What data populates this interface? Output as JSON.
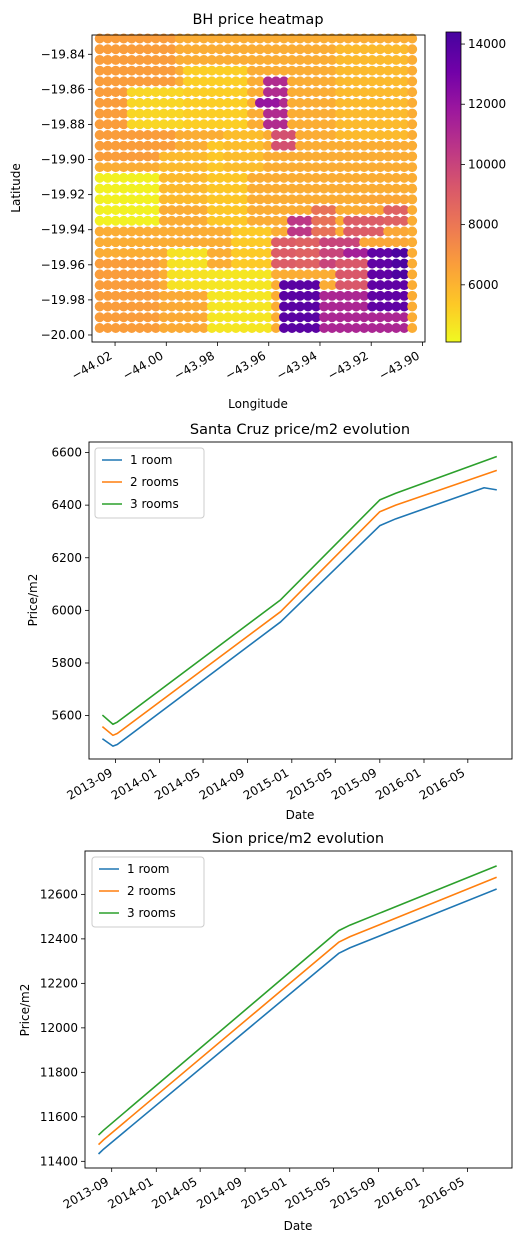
{
  "chart_data": [
    {
      "type": "heatmap",
      "title": "BH price heatmap",
      "xlabel": "Longitude",
      "ylabel": "Latitude",
      "xlim": [
        -44.029,
        -43.899
      ],
      "ylim": [
        -20.004,
        -19.829
      ],
      "x_ticks": [
        -44.02,
        -44.0,
        -43.98,
        -43.96,
        -43.94,
        -43.92,
        -43.9
      ],
      "x_tick_labels": [
        "−44.02",
        "−44.00",
        "−43.98",
        "−43.96",
        "−43.94",
        "−43.92",
        "−43.90"
      ],
      "y_ticks": [
        -19.84,
        -19.86,
        -19.88,
        -19.9,
        -19.92,
        -19.94,
        -19.96,
        -19.98,
        -20.0
      ],
      "y_tick_labels": [
        "−19.84",
        "−19.86",
        "−19.88",
        "−19.90",
        "−19.92",
        "−19.94",
        "−19.96",
        "−19.98",
        "−20.00"
      ],
      "grid": false,
      "colormap": "plasma_r",
      "colorbar_range": [
        4100,
        14400
      ],
      "colorbar_ticks": [
        6000,
        8000,
        10000,
        12000,
        14000
      ],
      "colorbar_tick_labels": [
        "6000",
        "8000",
        "10000",
        "12000",
        "14000"
      ],
      "x_range": [
        -44.026,
        -43.904
      ],
      "y_range": [
        -19.996,
        -19.831
      ],
      "columns": 40,
      "rows": 28,
      "regions": [
        {
          "x": [
            -44.026,
            -43.904
          ],
          "y": [
            -19.996,
            -19.831
          ],
          "value": 6200
        },
        {
          "x": [
            -44.026,
            -43.995
          ],
          "y": [
            -19.9,
            -19.831
          ],
          "value": 6700
        },
        {
          "x": [
            -44.016,
            -43.994
          ],
          "y": [
            -19.88,
            -19.858
          ],
          "value": 5000
        },
        {
          "x": [
            -43.992,
            -43.968
          ],
          "y": [
            -19.88,
            -19.848
          ],
          "value": 5200
        },
        {
          "x": [
            -44.026,
            -44.003
          ],
          "y": [
            -19.935,
            -19.905
          ],
          "value": 4300
        },
        {
          "x": [
            -44.003,
            -43.985
          ],
          "y": [
            -19.925,
            -19.895
          ],
          "value": 5800
        },
        {
          "x": [
            -43.985,
            -43.968
          ],
          "y": [
            -19.94,
            -19.89
          ],
          "value": 5400
        },
        {
          "x": [
            -43.978,
            -43.962
          ],
          "y": [
            -19.905,
            -19.88
          ],
          "value": 5700
        },
        {
          "x": [
            -44.026,
            -44.002
          ],
          "y": [
            -19.996,
            -19.955
          ],
          "value": 6700
        },
        {
          "x": [
            -44.002,
            -43.983
          ],
          "y": [
            -19.996,
            -19.97
          ],
          "value": 6300
        },
        {
          "x": [
            -44.0,
            -43.983
          ],
          "y": [
            -19.975,
            -19.948
          ],
          "value": 4700
        },
        {
          "x": [
            -43.983,
            -43.958
          ],
          "y": [
            -19.996,
            -19.965
          ],
          "value": 4600
        },
        {
          "x": [
            -43.975,
            -43.96
          ],
          "y": [
            -19.96,
            -19.935
          ],
          "value": 5300
        },
        {
          "x": [
            -43.935,
            -43.905
          ],
          "y": [
            -19.89,
            -19.835
          ],
          "value": 5800
        },
        {
          "x": [
            -43.925,
            -43.905
          ],
          "y": [
            -19.95,
            -19.92
          ],
          "value": 6400
        },
        {
          "x": [
            -43.962,
            -43.952
          ],
          "y": [
            -19.88,
            -19.855
          ],
          "value": 11000
        },
        {
          "x": [
            -43.965,
            -43.956
          ],
          "y": [
            -19.872,
            -19.862
          ],
          "value": 12000
        },
        {
          "x": [
            -43.96,
            -43.95
          ],
          "y": [
            -19.898,
            -19.882
          ],
          "value": 9500
        },
        {
          "x": [
            -43.958,
            -43.948
          ],
          "y": [
            -19.965,
            -19.945
          ],
          "value": 9000
        },
        {
          "x": [
            -43.95,
            -43.94
          ],
          "y": [
            -19.96,
            -19.93
          ],
          "value": 8800
        },
        {
          "x": [
            -43.942,
            -43.935
          ],
          "y": [
            -19.942,
            -19.925
          ],
          "value": 8200
        },
        {
          "x": [
            -43.952,
            -43.944
          ],
          "y": [
            -19.945,
            -19.932
          ],
          "value": 10500
        },
        {
          "x": [
            -43.94,
            -43.925
          ],
          "y": [
            -19.96,
            -19.945
          ],
          "value": 10000
        },
        {
          "x": [
            -43.93,
            -43.915
          ],
          "y": [
            -19.945,
            -19.93
          ],
          "value": 9000
        },
        {
          "x": [
            -43.935,
            -43.915
          ],
          "y": [
            -19.975,
            -19.958
          ],
          "value": 9200
        },
        {
          "x": [
            -43.93,
            -43.92
          ],
          "y": [
            -19.958,
            -19.948
          ],
          "value": 11500
        },
        {
          "x": [
            -43.915,
            -43.905
          ],
          "y": [
            -19.94,
            -19.925
          ],
          "value": 8800
        },
        {
          "x": [
            -43.956,
            -43.94
          ],
          "y": [
            -19.996,
            -19.97
          ],
          "value": 13800
        },
        {
          "x": [
            -43.94,
            -43.905
          ],
          "y": [
            -19.996,
            -19.972
          ],
          "value": 11200
        },
        {
          "x": [
            -43.922,
            -43.905
          ],
          "y": [
            -19.985,
            -19.95
          ],
          "value": 13600
        },
        {
          "x": [
            -43.912,
            -43.905
          ],
          "y": [
            -19.97,
            -19.95
          ],
          "value": 14200
        }
      ]
    },
    {
      "type": "line",
      "title": "Santa Cruz price/m2 evolution",
      "xlabel": "Date",
      "ylabel": "Price/m2",
      "x_tick_labels": [
        "2013-09",
        "2014-01",
        "2014-05",
        "2014-09",
        "2015-01",
        "2015-05",
        "2015-09",
        "2016-01",
        "2016-05"
      ],
      "y_ticks": [
        5600,
        5800,
        6000,
        6200,
        6400,
        6600
      ],
      "y_tick_labels": [
        "5600",
        "5800",
        "6000",
        "6200",
        "6400",
        "6600"
      ],
      "xlim": [
        "2013-06-20",
        "2016-08-31"
      ],
      "ylim": [
        5435,
        6640
      ],
      "grid": false,
      "legend": "top-left",
      "series": [
        {
          "name": "1 room",
          "color": "#1f77b4",
          "points": [
            [
              "2013-07-27",
              5512
            ],
            [
              "2013-08-25",
              5484
            ],
            [
              "2013-09-06",
              5490
            ],
            [
              "2014-12-01",
              5956
            ],
            [
              "2015-09-01",
              6322
            ],
            [
              "2015-10-15",
              6348
            ],
            [
              "2016-06-15",
              6466
            ],
            [
              "2016-07-20",
              6458
            ]
          ]
        },
        {
          "name": "2 rooms",
          "color": "#ff7f0e",
          "points": [
            [
              "2013-07-27",
              5558
            ],
            [
              "2013-08-25",
              5525
            ],
            [
              "2013-09-06",
              5532
            ],
            [
              "2014-12-01",
              5995
            ],
            [
              "2015-09-01",
              6375
            ],
            [
              "2015-10-15",
              6400
            ],
            [
              "2016-07-20",
              6532
            ]
          ]
        },
        {
          "name": "3 rooms",
          "color": "#2ca02c",
          "points": [
            [
              "2013-07-27",
              5602
            ],
            [
              "2013-08-25",
              5567
            ],
            [
              "2013-09-06",
              5575
            ],
            [
              "2014-12-01",
              6040
            ],
            [
              "2015-09-01",
              6420
            ],
            [
              "2015-10-15",
              6445
            ],
            [
              "2016-07-20",
              6585
            ]
          ]
        }
      ]
    },
    {
      "type": "line",
      "title": "Sion price/m2 evolution",
      "xlabel": "Date",
      "ylabel": "Price/m2",
      "x_tick_labels": [
        "2013-09",
        "2014-01",
        "2014-05",
        "2014-09",
        "2015-01",
        "2015-05",
        "2015-09",
        "2016-01",
        "2016-05"
      ],
      "y_ticks": [
        11400,
        11600,
        11800,
        12000,
        12200,
        12400,
        12600
      ],
      "y_tick_labels": [
        "11400",
        "11600",
        "11800",
        "12000",
        "12200",
        "12400",
        "12600"
      ],
      "xlim": [
        "2013-06-20",
        "2016-08-31"
      ],
      "ylim": [
        11370,
        12795
      ],
      "grid": false,
      "legend": "top-left",
      "series": [
        {
          "name": "1 room",
          "color": "#1f77b4",
          "points": [
            [
              "2013-07-27",
              11433
            ],
            [
              "2013-08-10",
              11455
            ],
            [
              "2015-05-15",
              12335
            ],
            [
              "2015-06-15",
              12360
            ],
            [
              "2016-07-20",
              12624
            ]
          ]
        },
        {
          "name": "2 rooms",
          "color": "#ff7f0e",
          "points": [
            [
              "2013-07-27",
              11475
            ],
            [
              "2013-08-10",
              11497
            ],
            [
              "2015-05-15",
              12385
            ],
            [
              "2015-06-15",
              12410
            ],
            [
              "2016-07-20",
              12677
            ]
          ]
        },
        {
          "name": "3 rooms",
          "color": "#2ca02c",
          "points": [
            [
              "2013-07-27",
              11518
            ],
            [
              "2013-08-10",
              11540
            ],
            [
              "2015-05-15",
              12437
            ],
            [
              "2015-06-15",
              12462
            ],
            [
              "2016-07-20",
              12728
            ]
          ]
        }
      ]
    }
  ]
}
